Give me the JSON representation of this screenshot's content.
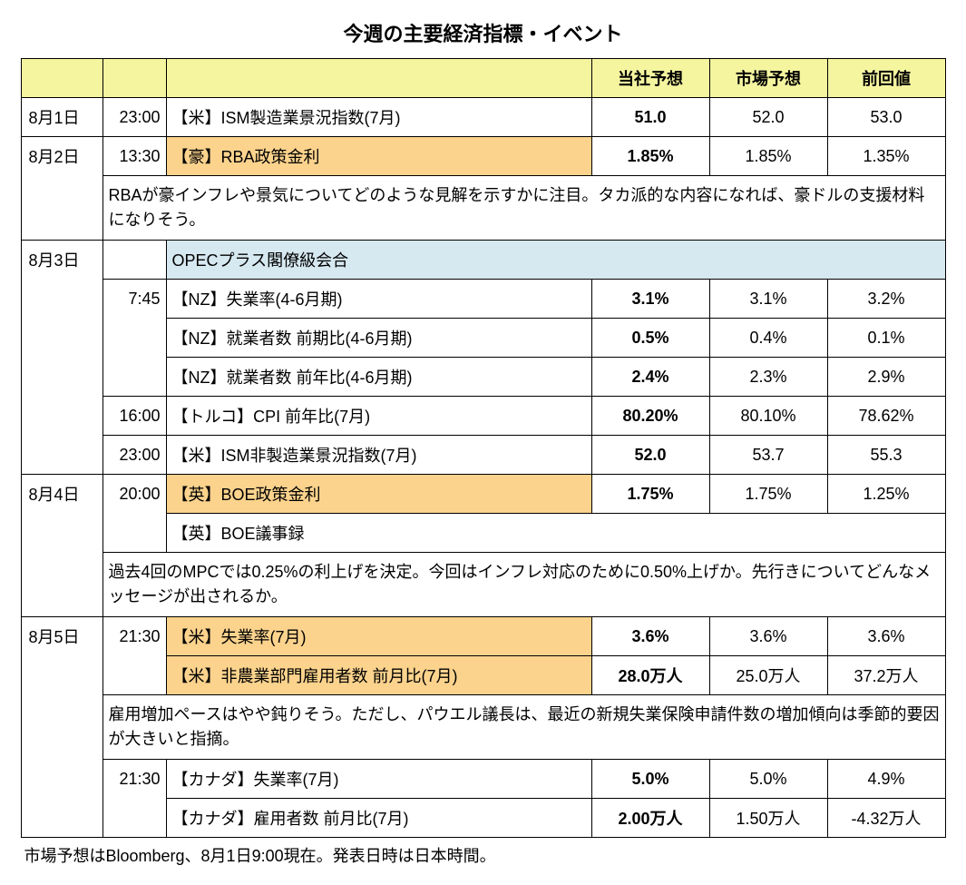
{
  "title": "今週の主要経済指標・イベント",
  "headers": {
    "forecast": "当社予想",
    "market": "市場予想",
    "previous": "前回値"
  },
  "dates": {
    "aug1": "8月1日",
    "aug2": "8月2日",
    "aug3": "8月3日",
    "aug4": "8月4日",
    "aug5": "8月5日"
  },
  "rows": {
    "r1": {
      "time": "23:00",
      "event": "【米】ISM製造業景況指数(7月)",
      "forecast": "51.0",
      "market": "52.0",
      "previous": "53.0"
    },
    "r2": {
      "time": "13:30",
      "event": "【豪】RBA政策金利",
      "forecast": "1.85%",
      "market": "1.85%",
      "previous": "1.35%"
    },
    "r2c": "RBAが豪インフレや景気についてどのような見解を示すかに注目。タカ派的な内容になれば、豪ドルの支援材料になりそう。",
    "r3a": {
      "event": "OPECプラス閣僚級会合"
    },
    "r3": {
      "time": "7:45",
      "event": "【NZ】失業率(4-6月期)",
      "forecast": "3.1%",
      "market": "3.1%",
      "previous": "3.2%"
    },
    "r4": {
      "event": "【NZ】就業者数 前期比(4-6月期)",
      "forecast": "0.5%",
      "market": "0.4%",
      "previous": "0.1%"
    },
    "r5": {
      "event": "【NZ】就業者数 前年比(4-6月期)",
      "forecast": "2.4%",
      "market": "2.3%",
      "previous": "2.9%"
    },
    "r6": {
      "time": "16:00",
      "event": "【トルコ】CPI 前年比(7月)",
      "forecast": "80.20%",
      "market": "80.10%",
      "previous": "78.62%"
    },
    "r7": {
      "time": "23:00",
      "event": "【米】ISM非製造業景況指数(7月)",
      "forecast": "52.0",
      "market": "53.7",
      "previous": "55.3"
    },
    "r8": {
      "time": "20:00",
      "event": "【英】BOE政策金利",
      "forecast": "1.75%",
      "market": "1.75%",
      "previous": "1.25%"
    },
    "r8b": {
      "event": "【英】BOE議事録"
    },
    "r8c": "過去4回のMPCでは0.25%の利上げを決定。今回はインフレ対応のために0.50%上げか。先行きについてどんなメッセージが出されるか。",
    "r9": {
      "time": "21:30",
      "event": "【米】失業率(7月)",
      "forecast": "3.6%",
      "market": "3.6%",
      "previous": "3.6%"
    },
    "r10": {
      "event": "【米】非農業部門雇用者数 前月比(7月)",
      "forecast": "28.0万人",
      "market": "25.0万人",
      "previous": "37.2万人"
    },
    "r10c": "雇用増加ペースはやや鈍りそう。ただし、パウエル議長は、最近の新規失業保険申請件数の増加傾向は季節的要因が大きいと指摘。",
    "r11": {
      "time": "21:30",
      "event": "【カナダ】失業率(7月)",
      "forecast": "5.0%",
      "market": "5.0%",
      "previous": "4.9%"
    },
    "r12": {
      "event": "【カナダ】雇用者数 前月比(7月)",
      "forecast": "2.00万人",
      "market": "1.50万人",
      "previous": "-4.32万人"
    }
  },
  "footnote": "市場予想はBloomberg、8月1日9:00現在。発表日時は日本時間。",
  "colors": {
    "header_bg": "#f5f5a0",
    "highlight_orange": "#fbd38d",
    "highlight_blue": "#d6e8f0",
    "border": "#000000",
    "background": "#ffffff"
  }
}
